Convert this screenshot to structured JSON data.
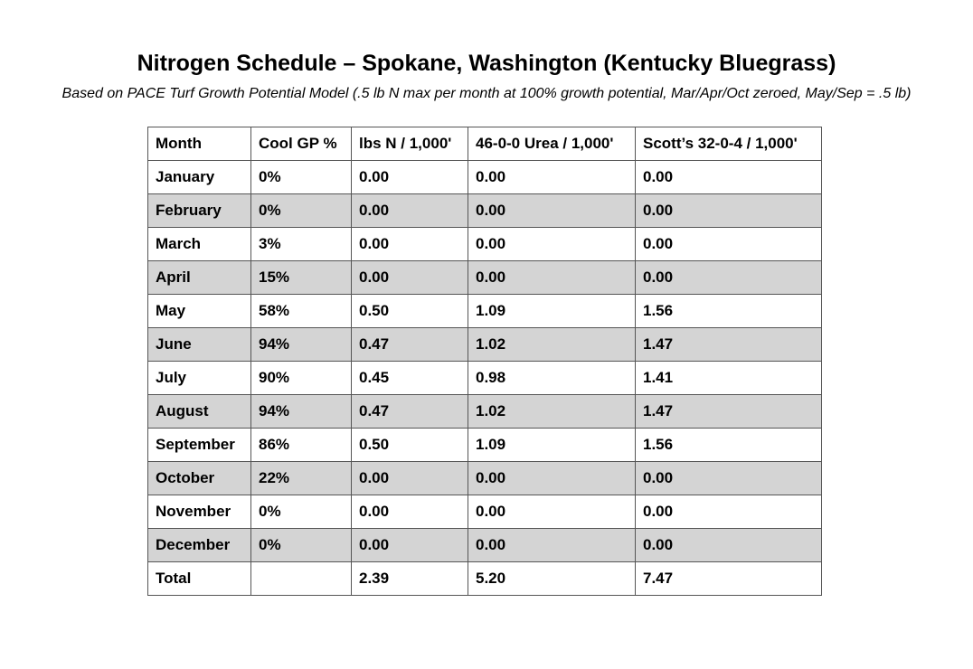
{
  "title": "Nitrogen Schedule – Spokane, Washington (Kentucky Bluegrass)",
  "subtitle": "Based on PACE Turf Growth Potential Model (.5 lb N max per month at 100% growth potential, Mar/Apr/Oct zeroed, May/Sep = .5 lb)",
  "table": {
    "headers": [
      "Month",
      "Cool GP %",
      "lbs N / 1,000'",
      "46-0-0 Urea / 1,000'",
      "Scott’s 32-0-4 / 1,000'"
    ],
    "rows": [
      [
        "January",
        "0%",
        "0.00",
        "0.00",
        "0.00"
      ],
      [
        "February",
        "0%",
        "0.00",
        "0.00",
        "0.00"
      ],
      [
        "March",
        "3%",
        "0.00",
        "0.00",
        "0.00"
      ],
      [
        "April",
        "15%",
        "0.00",
        "0.00",
        "0.00"
      ],
      [
        "May",
        "58%",
        "0.50",
        "1.09",
        "1.56"
      ],
      [
        "June",
        "94%",
        "0.47",
        "1.02",
        "1.47"
      ],
      [
        "July",
        "90%",
        "0.45",
        "0.98",
        "1.41"
      ],
      [
        "August",
        "94%",
        "0.47",
        "1.02",
        "1.47"
      ],
      [
        "September",
        "86%",
        "0.50",
        "1.09",
        "1.56"
      ],
      [
        "October",
        "22%",
        "0.00",
        "0.00",
        "0.00"
      ],
      [
        "November",
        "0%",
        "0.00",
        "0.00",
        "0.00"
      ],
      [
        "December",
        "0%",
        "0.00",
        "0.00",
        "0.00"
      ]
    ],
    "total": [
      "Total",
      "",
      "2.39",
      "5.20",
      "7.47"
    ]
  },
  "colors": {
    "stripe": "#d4d4d4",
    "border": "#555555",
    "background": "#ffffff"
  }
}
